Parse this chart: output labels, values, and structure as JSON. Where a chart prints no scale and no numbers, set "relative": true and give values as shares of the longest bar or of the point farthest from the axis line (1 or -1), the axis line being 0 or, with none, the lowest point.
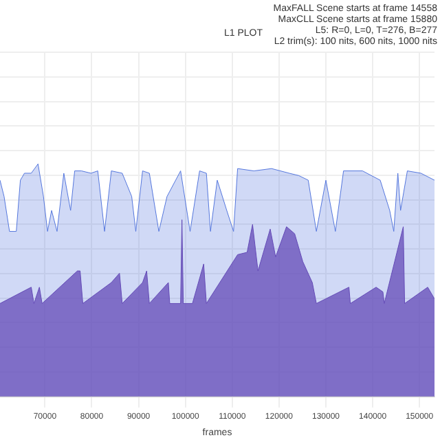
{
  "chart_data": {
    "type": "area",
    "title": "L1 PLOT",
    "xlabel": "frames",
    "relative": true,
    "grid": true,
    "legend": false,
    "annotations": [
      "MaxFALL Scene starts at frame 14558",
      "MaxCLL Scene starts at frame 15880",
      "L5: R=0, L=0, T=276, B=277",
      "L2 trim(s): 100 nits, 600 nits, 1000 nits"
    ],
    "xlim": [
      60400,
      153200
    ],
    "xticks": [
      70000,
      80000,
      90000,
      100000,
      110000,
      120000,
      130000,
      140000,
      150000
    ],
    "series": [
      {
        "color": "#5577dd",
        "x": [
          60400,
          61270,
          62430,
          63880,
          64750,
          65620,
          67070,
          68520,
          69680,
          70550,
          71420,
          72580,
          74030,
          75480,
          76350,
          77800,
          79830,
          81280,
          82730,
          84180,
          86500,
          88530,
          89400,
          90850,
          92300,
          94330,
          96070,
          98970,
          101000,
          103030,
          104480,
          105350,
          106800,
          108830,
          110280,
          111150,
          114630,
          118400,
          122170,
          124200,
          126230,
          127970,
          130000,
          132030,
          133770,
          137830,
          141600,
          143630,
          144500,
          145370,
          145950,
          147400,
          150300,
          153200
        ],
        "values": [
          0.93,
          0.86,
          0.71,
          0.71,
          0.93,
          0.96,
          0.96,
          1.0,
          0.86,
          0.71,
          0.8,
          0.71,
          0.96,
          0.8,
          0.97,
          0.97,
          0.96,
          0.97,
          0.71,
          0.97,
          0.96,
          0.86,
          0.71,
          0.97,
          0.96,
          0.71,
          0.86,
          0.97,
          0.71,
          0.97,
          0.96,
          0.71,
          0.93,
          0.8,
          0.71,
          0.98,
          0.97,
          0.98,
          0.96,
          0.95,
          0.93,
          0.71,
          0.93,
          0.71,
          0.97,
          0.97,
          0.93,
          0.8,
          0.71,
          0.96,
          0.8,
          0.97,
          0.96,
          0.93
        ]
      },
      {
        "color": "#6a3aa8",
        "x": [
          60400,
          67070,
          67650,
          68810,
          69390,
          76930,
          77510,
          78090,
          84180,
          85920,
          86500,
          90850,
          91720,
          92300,
          96360,
          96650,
          98970,
          99260,
          99550,
          101500,
          103900,
          104480,
          111150,
          113180,
          114340,
          115500,
          118110,
          119270,
          121590,
          123330,
          125070,
          127100,
          127970,
          134930,
          135220,
          140730,
          142180,
          142470,
          146530,
          146820,
          151750,
          153200
        ],
        "values": [
          0.4,
          0.47,
          0.4,
          0.47,
          0.4,
          0.54,
          0.54,
          0.4,
          0.49,
          0.53,
          0.4,
          0.49,
          0.54,
          0.4,
          0.49,
          0.4,
          0.4,
          0.76,
          0.4,
          0.4,
          0.57,
          0.4,
          0.61,
          0.62,
          0.74,
          0.54,
          0.72,
          0.6,
          0.73,
          0.7,
          0.58,
          0.49,
          0.4,
          0.47,
          0.4,
          0.47,
          0.45,
          0.4,
          0.73,
          0.4,
          0.47,
          0.42
        ]
      }
    ]
  }
}
